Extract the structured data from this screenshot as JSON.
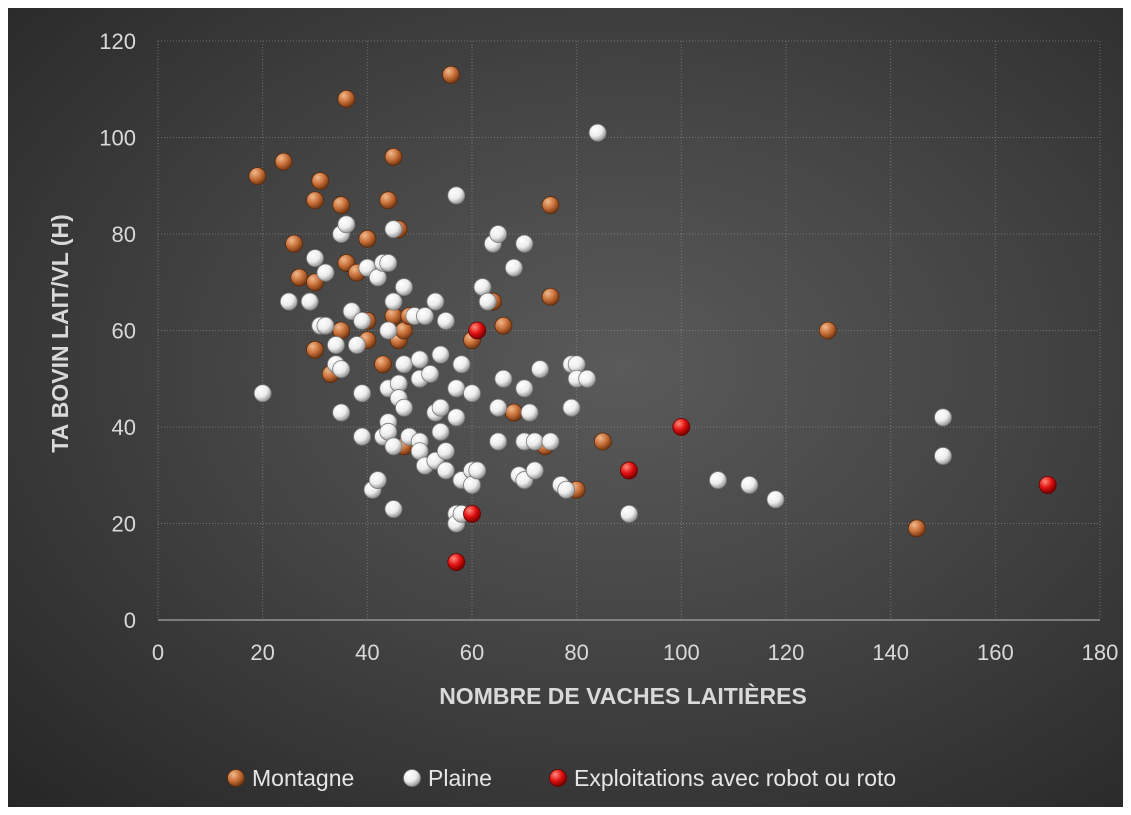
{
  "chart_data": {
    "type": "scatter",
    "title": "",
    "xlabel": "NOMBRE DE VACHES LAITIÈRES",
    "ylabel": "TA BOVIN LAIT/VL (H)",
    "xlim": [
      0,
      180
    ],
    "ylim": [
      0,
      120
    ],
    "x_ticks": [
      0,
      20,
      40,
      60,
      80,
      100,
      120,
      140,
      160,
      180
    ],
    "y_ticks": [
      0,
      20,
      40,
      60,
      80,
      100,
      120
    ],
    "grid": true,
    "legend_position": "bottom",
    "series": [
      {
        "name": "Montagne",
        "color": "#c8703a",
        "points": [
          [
            19,
            92
          ],
          [
            24,
            95
          ],
          [
            26,
            78
          ],
          [
            27,
            71
          ],
          [
            30,
            70
          ],
          [
            30,
            87
          ],
          [
            31,
            91
          ],
          [
            30,
            56
          ],
          [
            33,
            51
          ],
          [
            35,
            60
          ],
          [
            35,
            86
          ],
          [
            36,
            108
          ],
          [
            36,
            74
          ],
          [
            38,
            72
          ],
          [
            40,
            79
          ],
          [
            40,
            62
          ],
          [
            40,
            58
          ],
          [
            43,
            53
          ],
          [
            44,
            87
          ],
          [
            45,
            96
          ],
          [
            45,
            63
          ],
          [
            46,
            81
          ],
          [
            46,
            58
          ],
          [
            47,
            60
          ],
          [
            47,
            36
          ],
          [
            48,
            63
          ],
          [
            56,
            113
          ],
          [
            60,
            58
          ],
          [
            64,
            66
          ],
          [
            66,
            61
          ],
          [
            68,
            43
          ],
          [
            74,
            36
          ],
          [
            75,
            86
          ],
          [
            75,
            67
          ],
          [
            80,
            27
          ],
          [
            85,
            37
          ],
          [
            128,
            60
          ],
          [
            145,
            19
          ]
        ]
      },
      {
        "name": "Plaine",
        "color": "#f2f2f2",
        "points": [
          [
            20,
            47
          ],
          [
            25,
            66
          ],
          [
            29,
            66
          ],
          [
            30,
            75
          ],
          [
            31,
            61
          ],
          [
            32,
            72
          ],
          [
            32,
            61
          ],
          [
            34,
            53
          ],
          [
            34,
            57
          ],
          [
            35,
            80
          ],
          [
            35,
            52
          ],
          [
            35,
            43
          ],
          [
            36,
            82
          ],
          [
            37,
            64
          ],
          [
            38,
            57
          ],
          [
            39,
            62
          ],
          [
            39,
            47
          ],
          [
            39,
            38
          ],
          [
            40,
            73
          ],
          [
            41,
            27
          ],
          [
            42,
            29
          ],
          [
            42,
            71
          ],
          [
            43,
            38
          ],
          [
            43,
            74
          ],
          [
            44,
            74
          ],
          [
            44,
            60
          ],
          [
            44,
            48
          ],
          [
            44,
            41
          ],
          [
            44,
            39
          ],
          [
            45,
            81
          ],
          [
            45,
            66
          ],
          [
            45,
            36
          ],
          [
            45,
            23
          ],
          [
            46,
            49
          ],
          [
            46,
            46
          ],
          [
            47,
            69
          ],
          [
            47,
            53
          ],
          [
            47,
            44
          ],
          [
            48,
            38
          ],
          [
            49,
            63
          ],
          [
            50,
            54
          ],
          [
            50,
            50
          ],
          [
            50,
            37
          ],
          [
            50,
            35
          ],
          [
            51,
            63
          ],
          [
            51,
            32
          ],
          [
            52,
            51
          ],
          [
            53,
            66
          ],
          [
            53,
            43
          ],
          [
            53,
            33
          ],
          [
            54,
            55
          ],
          [
            54,
            44
          ],
          [
            54,
            39
          ],
          [
            55,
            62
          ],
          [
            55,
            35
          ],
          [
            55,
            31
          ],
          [
            57,
            88
          ],
          [
            57,
            48
          ],
          [
            57,
            42
          ],
          [
            57,
            22
          ],
          [
            57,
            20
          ],
          [
            58,
            53
          ],
          [
            58,
            22
          ],
          [
            58,
            29
          ],
          [
            60,
            47
          ],
          [
            60,
            31
          ],
          [
            60,
            28
          ],
          [
            61,
            31
          ],
          [
            62,
            69
          ],
          [
            63,
            66
          ],
          [
            64,
            78
          ],
          [
            65,
            80
          ],
          [
            65,
            44
          ],
          [
            65,
            37
          ],
          [
            66,
            50
          ],
          [
            68,
            73
          ],
          [
            69,
            30
          ],
          [
            70,
            78
          ],
          [
            70,
            48
          ],
          [
            70,
            37
          ],
          [
            70,
            29
          ],
          [
            71,
            43
          ],
          [
            72,
            31
          ],
          [
            72,
            37
          ],
          [
            73,
            52
          ],
          [
            75,
            37
          ],
          [
            77,
            28
          ],
          [
            78,
            27
          ],
          [
            79,
            53
          ],
          [
            79,
            44
          ],
          [
            80,
            53
          ],
          [
            80,
            50
          ],
          [
            82,
            50
          ],
          [
            84,
            101
          ],
          [
            90,
            22
          ],
          [
            107,
            29
          ],
          [
            113,
            28
          ],
          [
            118,
            25
          ],
          [
            150,
            42
          ],
          [
            150,
            34
          ]
        ]
      },
      {
        "name": "Exploitations avec robot ou roto",
        "color": "#e01010",
        "points": [
          [
            57,
            12
          ],
          [
            60,
            22
          ],
          [
            61,
            60
          ],
          [
            90,
            31
          ],
          [
            100,
            40
          ],
          [
            170,
            28
          ]
        ]
      }
    ]
  }
}
